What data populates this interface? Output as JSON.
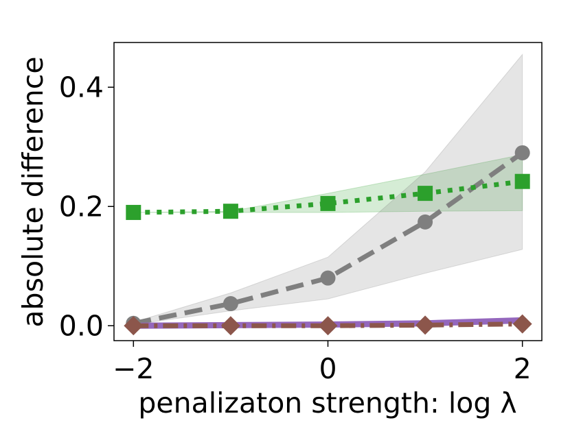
{
  "chart_data": {
    "type": "line",
    "title": "",
    "xlabel": "penalizaton strength:  log λ",
    "ylabel": "absolute difference",
    "xlim": [
      -2.2,
      2.2
    ],
    "ylim": [
      -0.025,
      0.475
    ],
    "xticks": [
      -2,
      0,
      2
    ],
    "xtick_labels": [
      "−2",
      "0",
      "2"
    ],
    "yticks": [
      0.0,
      0.2,
      0.4
    ],
    "ytick_labels": [
      "0.0",
      "0.2",
      "0.4"
    ],
    "grid": false,
    "x": [
      -2,
      -1,
      0,
      1,
      2
    ],
    "series": [
      {
        "name": "green",
        "color": "#2ca02c",
        "dash": "dotted",
        "marker": "square",
        "values": [
          0.19,
          0.192,
          0.205,
          0.222,
          0.242
        ],
        "band_lower": [
          0.19,
          0.19,
          0.19,
          0.192,
          0.193
        ],
        "band_upper": [
          0.19,
          0.192,
          0.222,
          0.254,
          0.287
        ]
      },
      {
        "name": "gray",
        "color": "#7f7f7f",
        "dash": "dashed",
        "marker": "circle",
        "values": [
          0.004,
          0.037,
          0.08,
          0.174,
          0.29
        ],
        "band_lower": [
          0.002,
          0.025,
          0.045,
          0.088,
          0.128
        ],
        "band_upper": [
          0.006,
          0.055,
          0.115,
          0.258,
          0.455
        ]
      },
      {
        "name": "purple",
        "color": "#9467bd",
        "dash": "solid",
        "marker": "none",
        "values": [
          0.0,
          0.001,
          0.002,
          0.004,
          0.009
        ]
      },
      {
        "name": "brown",
        "color": "#8c564b",
        "dash": "dashdot",
        "marker": "diamond",
        "values": [
          0.0,
          0.0,
          0.0,
          0.001,
          0.003
        ]
      }
    ]
  }
}
